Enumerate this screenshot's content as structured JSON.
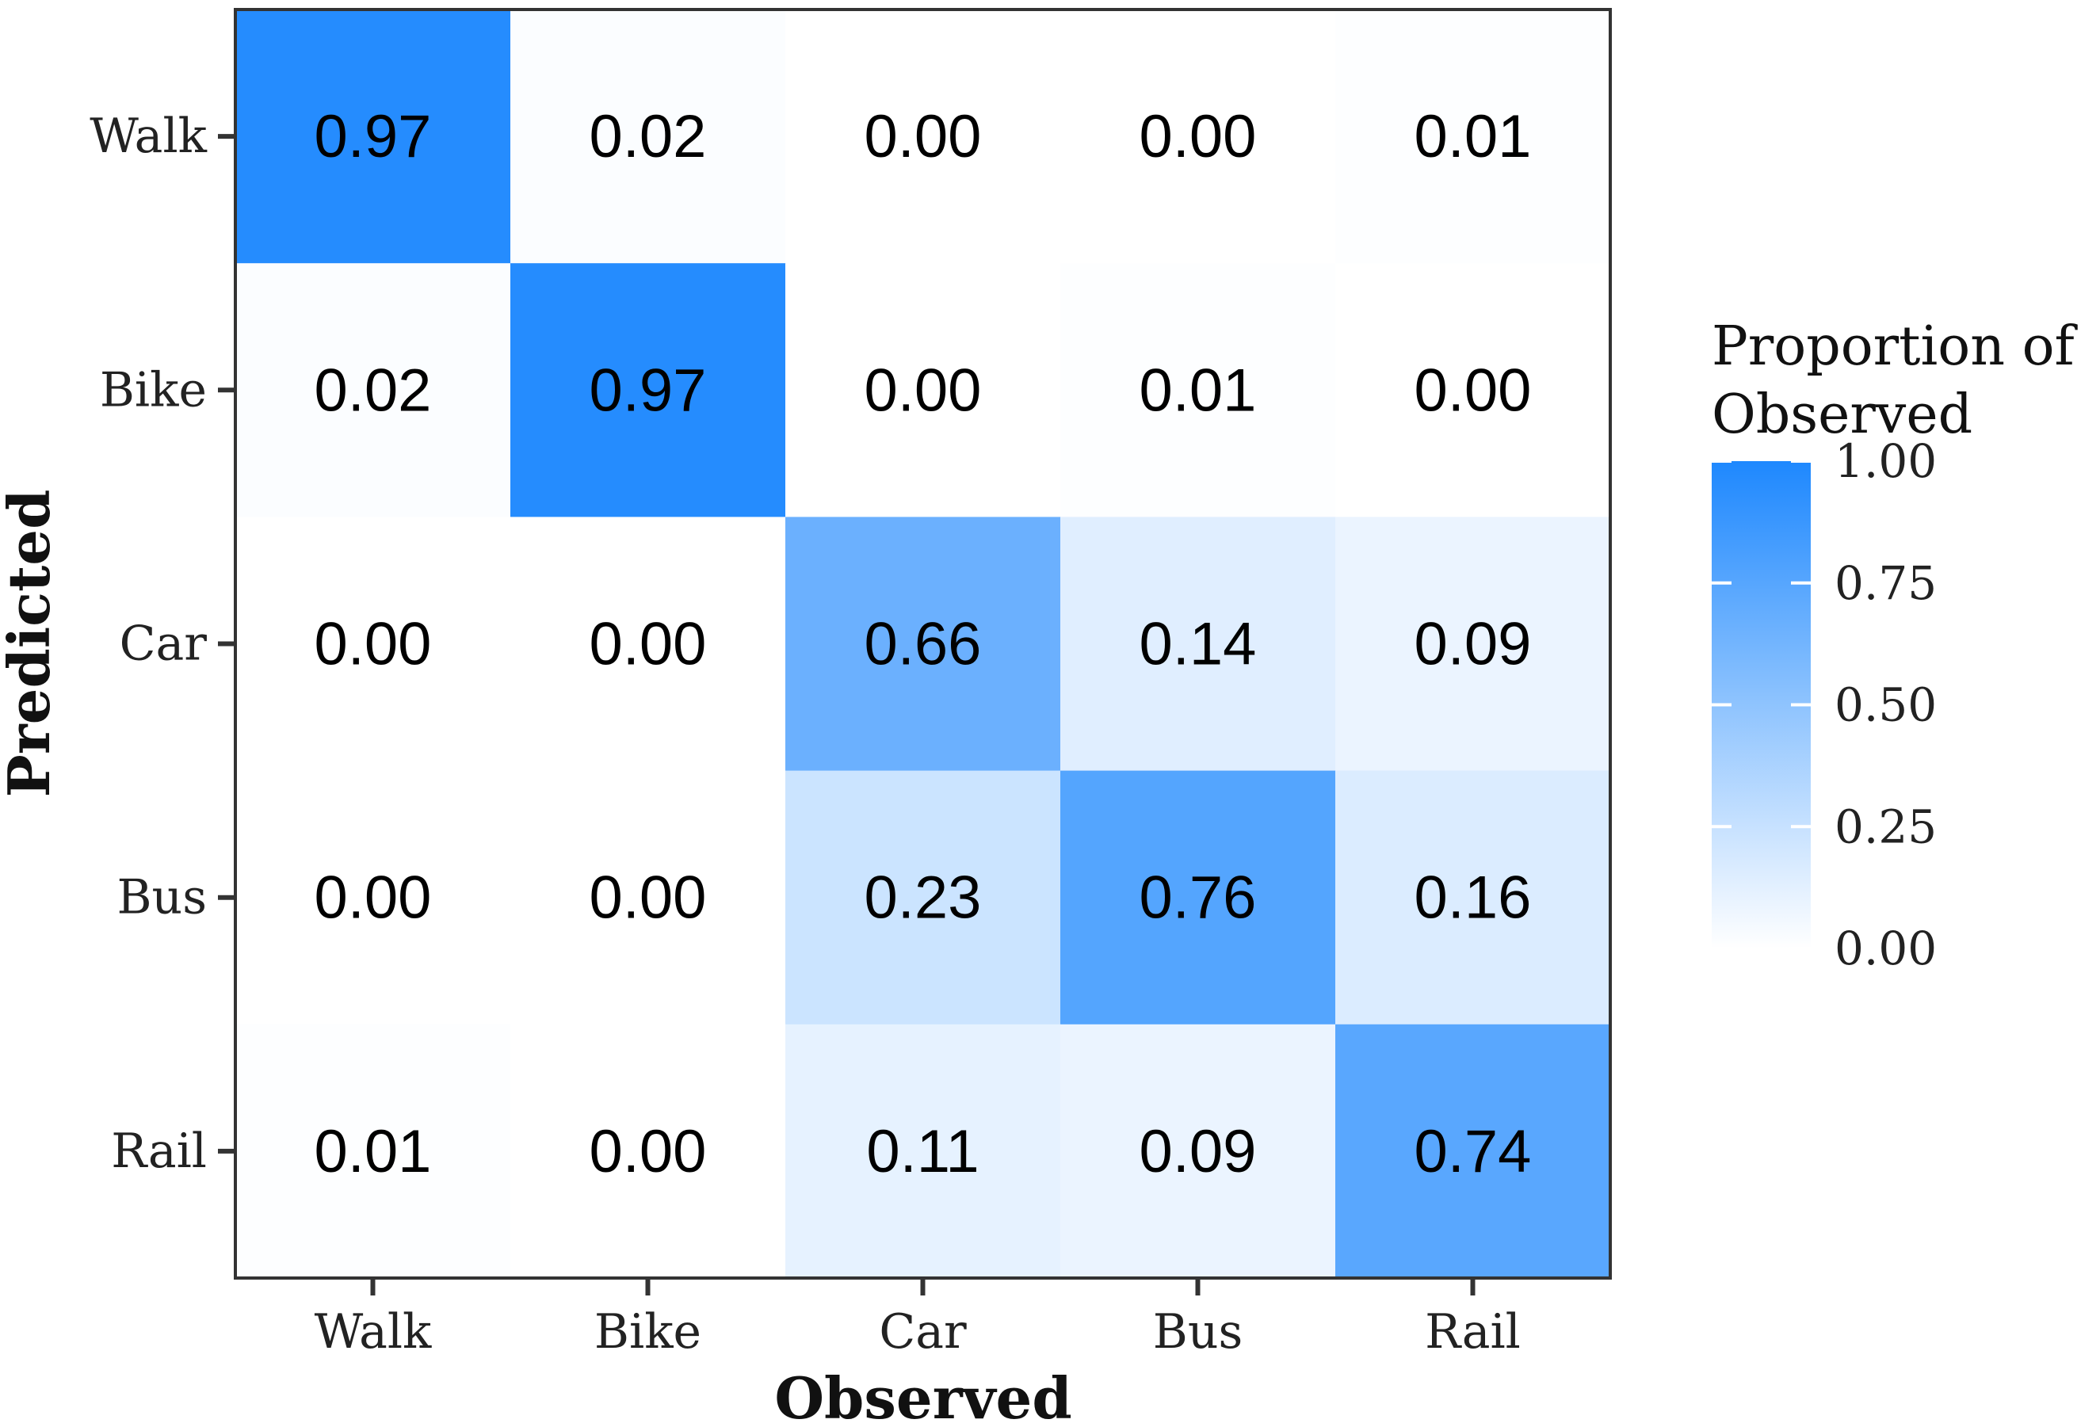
{
  "chart_data": {
    "type": "heatmap",
    "title": "",
    "xlabel": "Observed",
    "ylabel": "Predicted",
    "x_categories": [
      "Walk",
      "Bike",
      "Car",
      "Bus",
      "Rail"
    ],
    "y_categories": [
      "Walk",
      "Bike",
      "Car",
      "Bus",
      "Rail"
    ],
    "values": [
      [
        0.97,
        0.02,
        0.0,
        0.0,
        0.01
      ],
      [
        0.02,
        0.97,
        0.0,
        0.01,
        0.0
      ],
      [
        0.0,
        0.0,
        0.66,
        0.14,
        0.09
      ],
      [
        0.0,
        0.0,
        0.23,
        0.76,
        0.16
      ],
      [
        0.01,
        0.0,
        0.11,
        0.09,
        0.74
      ]
    ],
    "value_labels": [
      [
        "0.97",
        "0.02",
        "0.00",
        "0.00",
        "0.01"
      ],
      [
        "0.02",
        "0.97",
        "0.00",
        "0.01",
        "0.00"
      ],
      [
        "0.00",
        "0.00",
        "0.66",
        "0.14",
        "0.09"
      ],
      [
        "0.00",
        "0.00",
        "0.23",
        "0.76",
        "0.16"
      ],
      [
        "0.01",
        "0.00",
        "0.11",
        "0.09",
        "0.74"
      ]
    ],
    "color_scale": {
      "low": "#ffffff",
      "high": "#1e88fe",
      "range": [
        0,
        1
      ]
    },
    "legend": {
      "title_line1": "Proportion of",
      "title_line2": "Observed",
      "placement": "right",
      "ticks": [
        {
          "value": 1.0,
          "label": "1.00"
        },
        {
          "value": 0.75,
          "label": "0.75"
        },
        {
          "value": 0.5,
          "label": "0.50"
        },
        {
          "value": 0.25,
          "label": "0.25"
        },
        {
          "value": 0.0,
          "label": "0.00"
        }
      ]
    }
  }
}
